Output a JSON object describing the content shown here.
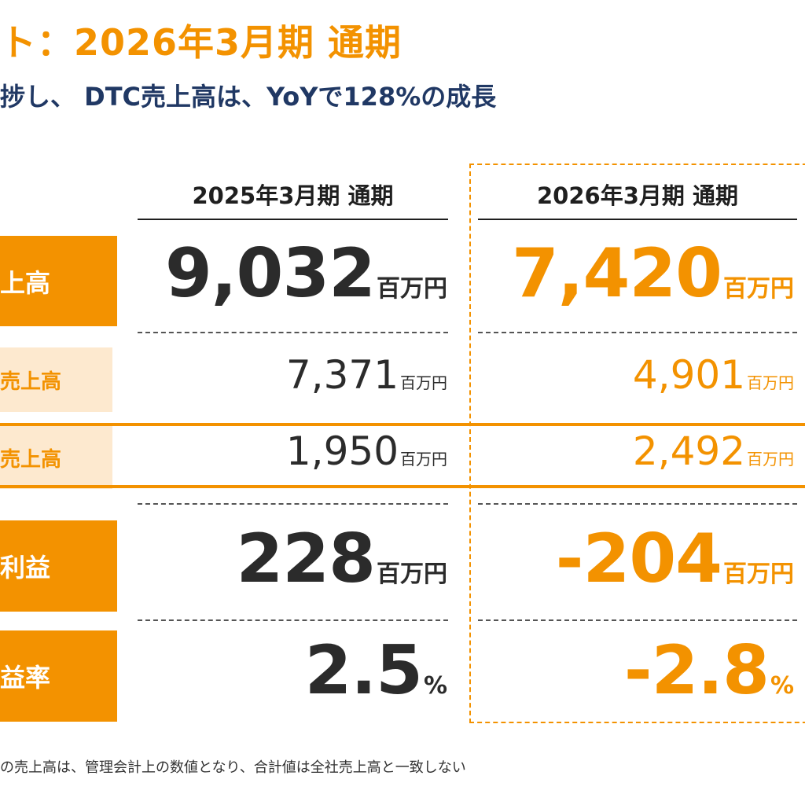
{
  "title": "ト：2026年3月期 通期",
  "subtitle": "捗し、 DTC売上高は、YoYで128%の成長",
  "columns": {
    "prev": "2025年3月期 通期",
    "curr": "2026年3月期 通期"
  },
  "rows": [
    {
      "label": "上高",
      "prev": "9,032",
      "curr": "7,420",
      "unit": "百万円"
    },
    {
      "label": "売上高",
      "prev": "7,371",
      "curr": "4,901",
      "unit": "百万円"
    },
    {
      "label": "売上高",
      "prev": "1,950",
      "curr": "2,492",
      "unit": "百万円"
    },
    {
      "label": "利益",
      "prev": "228",
      "curr": "-204",
      "unit": "百万円"
    },
    {
      "label": "益率",
      "prev": "2.5",
      "curr": "-2.8",
      "unit": "%"
    }
  ],
  "footnote": "の売上高は、管理会計上の数値となり、合計値は全社売上高と一致しない",
  "colors": {
    "accent": "#f39200",
    "accent_light": "#fde9cf",
    "navy": "#203864",
    "text": "#2b2b2b"
  }
}
